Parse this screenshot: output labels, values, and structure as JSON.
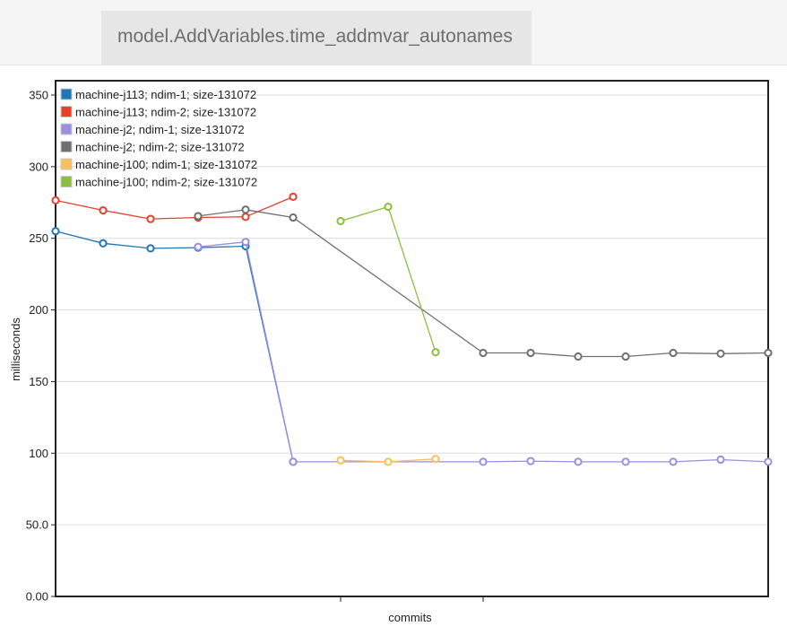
{
  "header": {
    "title": "model.AddVariables.time_addmvar_autonames"
  },
  "chart_data": {
    "type": "line",
    "title": "",
    "xlabel": "commits",
    "ylabel": "milliseconds",
    "ylim": [
      0,
      360
    ],
    "xlim": [
      0,
      15
    ],
    "yticks": [
      {
        "value": 0,
        "label": "0.00"
      },
      {
        "value": 50,
        "label": "50.0"
      },
      {
        "value": 100,
        "label": "100"
      },
      {
        "value": 150,
        "label": "150"
      },
      {
        "value": 200,
        "label": "200"
      },
      {
        "value": 250,
        "label": "250"
      },
      {
        "value": 300,
        "label": "300"
      },
      {
        "value": 350,
        "label": "350"
      }
    ],
    "xticks": [
      6,
      9
    ],
    "grid": true,
    "legend_position": "top-left",
    "series": [
      {
        "name": "machine-j113; ndim-1; size-131072",
        "color": "#1f77b4",
        "points": [
          [
            0,
            255
          ],
          [
            1,
            246.5
          ],
          [
            2,
            243
          ],
          [
            3,
            243.5
          ],
          [
            4,
            244.5
          ],
          [
            5,
            94
          ]
        ]
      },
      {
        "name": "machine-j113; ndim-2; size-131072",
        "color": "#e8402a",
        "points": [
          [
            0,
            276.5
          ],
          [
            1,
            269.5
          ],
          [
            2,
            263.5
          ],
          [
            3,
            264.5
          ],
          [
            4,
            265
          ],
          [
            5,
            279
          ]
        ]
      },
      {
        "name": "machine-j2; ndim-1; size-131072",
        "color": "#9a8fe0",
        "points": [
          [
            3,
            244
          ],
          [
            4,
            247.5
          ],
          [
            5,
            94
          ],
          [
            9,
            94
          ],
          [
            10,
            94.5
          ],
          [
            11,
            94
          ],
          [
            12,
            94
          ],
          [
            13,
            94
          ],
          [
            14,
            95.5
          ],
          [
            15,
            94
          ]
        ]
      },
      {
        "name": "machine-j2; ndim-2; size-131072",
        "color": "#707070",
        "points": [
          [
            3,
            265.5
          ],
          [
            4,
            270
          ],
          [
            5,
            264.5
          ],
          [
            9,
            170
          ],
          [
            10,
            170
          ],
          [
            11,
            167.5
          ],
          [
            12,
            167.5
          ],
          [
            13,
            170
          ],
          [
            14,
            169.5
          ],
          [
            15,
            170
          ]
        ]
      },
      {
        "name": "machine-j100; ndim-1; size-131072",
        "color": "#f8c05a",
        "points": [
          [
            6,
            95
          ],
          [
            7,
            94
          ],
          [
            8,
            96
          ]
        ]
      },
      {
        "name": "machine-j100; ndim-2; size-131072",
        "color": "#8cbf3f",
        "points": [
          [
            6,
            262
          ],
          [
            7,
            272
          ],
          [
            8,
            170.5
          ]
        ]
      }
    ]
  }
}
